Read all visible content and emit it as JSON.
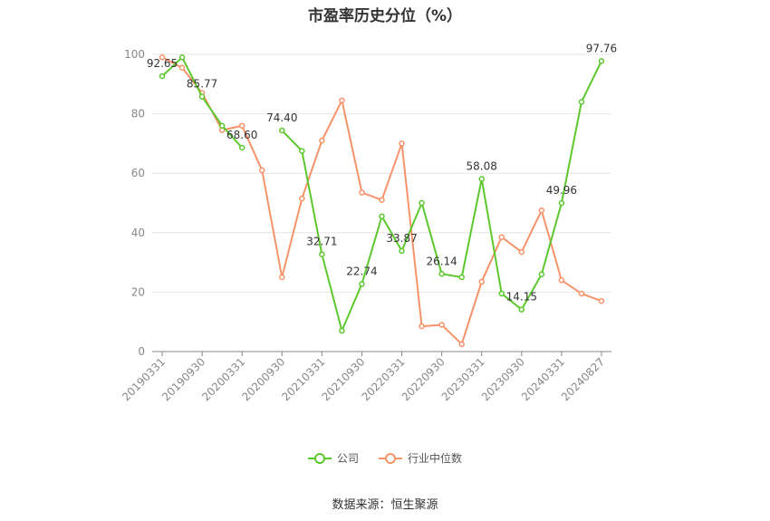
{
  "chart_data": {
    "type": "line",
    "title": "市盈率历史分位（%）",
    "ylim": [
      0,
      100
    ],
    "yticks": [
      0,
      20,
      40,
      60,
      80,
      100
    ],
    "grid": true,
    "legend_position": "bottom",
    "x": [
      "20190331",
      "20190630",
      "20190930",
      "20191231",
      "20200331",
      "20200630",
      "20200930",
      "20201231",
      "20210331",
      "20210630",
      "20210930",
      "20211231",
      "20220331",
      "20220630",
      "20220930",
      "20221231",
      "20230331",
      "20230630",
      "20230930",
      "20231231",
      "20240331",
      "20240630",
      "20240827"
    ],
    "xtick_labels": [
      "20190331",
      "20190930",
      "20200331",
      "20200930",
      "20210331",
      "20210930",
      "20220331",
      "20220930",
      "20230331",
      "20230930",
      "20240331",
      "20240827"
    ],
    "series": [
      {
        "name": "公司",
        "color": "#5cc82e",
        "values": [
          92.65,
          99.0,
          85.77,
          76.0,
          68.6,
          null,
          74.4,
          67.5,
          32.71,
          7.0,
          22.74,
          45.5,
          33.87,
          50.0,
          26.14,
          25.0,
          58.08,
          19.5,
          14.15,
          26.0,
          49.96,
          84.0,
          97.76
        ]
      },
      {
        "name": "行业中位数",
        "color": "#f7936a",
        "values": [
          99.0,
          95.5,
          87.0,
          74.5,
          76.0,
          61.0,
          25.0,
          51.5,
          71.0,
          84.5,
          53.5,
          51.0,
          70.0,
          8.5,
          9.0,
          2.5,
          23.5,
          38.5,
          33.5,
          47.5,
          24.0,
          19.5,
          17.0
        ]
      }
    ],
    "annotations": [
      {
        "index": 0,
        "text": "92.65"
      },
      {
        "index": 2,
        "text": "85.77"
      },
      {
        "index": 4,
        "text": "68.60"
      },
      {
        "index": 6,
        "text": "74.40"
      },
      {
        "index": 8,
        "text": "32.71"
      },
      {
        "index": 10,
        "text": "22.74"
      },
      {
        "index": 12,
        "text": "33.87"
      },
      {
        "index": 14,
        "text": "26.14"
      },
      {
        "index": 16,
        "text": "58.08"
      },
      {
        "index": 18,
        "text": "14.15"
      },
      {
        "index": 20,
        "text": "49.96"
      },
      {
        "index": 22,
        "text": "97.76"
      }
    ]
  },
  "source": "数据来源：恒生聚源"
}
